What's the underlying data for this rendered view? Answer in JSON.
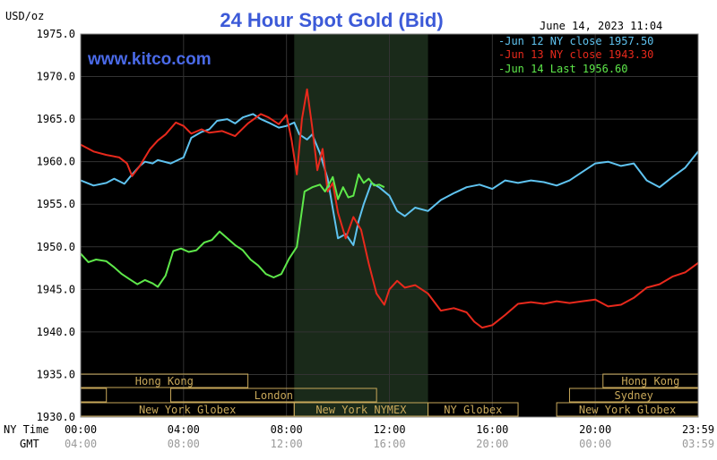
{
  "header": {
    "title": "24 Hour Spot Gold (Bid)",
    "units": "USD/oz",
    "timestamp": "June 14, 2023 11:04",
    "watermark": "www.kitco.com"
  },
  "colors": {
    "background": "#000000",
    "grid": "#333333",
    "jun12": "#5fc3f0",
    "jun13": "#e8291c",
    "jun14": "#5ee84a",
    "session_bar": "#c8a85a",
    "title": "#3c5ad8",
    "shade": "#1a2a1a"
  },
  "axis_labels": {
    "ny_time": "NY Time",
    "gmt": "GMT"
  },
  "sessions": [
    {
      "label": "Hong Kong",
      "start": 0,
      "end": 6.5,
      "row": 0
    },
    {
      "label": "Hong Kong",
      "start": 20.3,
      "end": 24,
      "row": 0
    },
    {
      "label": "",
      "start": 0,
      "end": 1,
      "row": 1
    },
    {
      "label": "London",
      "start": 3.5,
      "end": 11.5,
      "row": 1
    },
    {
      "label": "Sydney",
      "start": 19,
      "end": 24,
      "row": 1
    },
    {
      "label": "New York Globex",
      "start": 0,
      "end": 8.3,
      "row": 2
    },
    {
      "label": "New York NYMEX",
      "start": 8.3,
      "end": 13.5,
      "row": 2
    },
    {
      "label": "NY Globex",
      "start": 13.5,
      "end": 17,
      "row": 2
    },
    {
      "label": "New York Globex",
      "start": 18.5,
      "end": 24,
      "row": 2
    }
  ],
  "chart_data": {
    "type": "line",
    "title": "24 Hour Spot Gold (Bid)",
    "ylabel": "USD/oz",
    "xlabel": "NY Time",
    "xlim": [
      0,
      24
    ],
    "ylim": [
      1930,
      1975
    ],
    "yticks": [
      "1975.0",
      "1970.0",
      "1965.0",
      "1960.0",
      "1955.0",
      "1950.0",
      "1945.0",
      "1940.0",
      "1935.0",
      "1930.0"
    ],
    "xticks": [
      {
        "ny": "00:00",
        "gmt": "04:00"
      },
      {
        "ny": "04:00",
        "gmt": "08:00"
      },
      {
        "ny": "08:00",
        "gmt": "12:00"
      },
      {
        "ny": "12:00",
        "gmt": "16:00"
      },
      {
        "ny": "16:00",
        "gmt": "20:00"
      },
      {
        "ny": "20:00",
        "gmt": "00:00"
      },
      {
        "ny": "23:59",
        "gmt": "03:59"
      }
    ],
    "shaded_region": [
      8.3,
      13.5
    ],
    "grid": true,
    "legend_position": "top-right",
    "series": [
      {
        "name": "Jun 12 NY close 1957.50",
        "x": [
          0,
          0.5,
          1,
          1.3,
          1.7,
          2,
          2.3,
          2.5,
          2.8,
          3,
          3.5,
          4,
          4.3,
          4.7,
          5,
          5.3,
          5.7,
          6,
          6.3,
          6.7,
          7,
          7.3,
          7.7,
          8,
          8.3,
          8.5,
          8.8,
          9,
          9.3,
          9.6,
          9.8,
          10,
          10.3,
          10.6,
          10.8,
          11,
          11.3,
          11.6,
          12,
          12.3,
          12.6,
          13,
          13.5,
          14,
          14.5,
          15,
          15.5,
          16,
          16.5,
          17,
          17.5,
          18,
          18.5,
          19,
          19.5,
          20,
          20.5,
          21,
          21.5,
          22,
          22.5,
          23,
          23.5,
          24
        ],
        "y": [
          1957.8,
          1957.2,
          1957.5,
          1958.0,
          1957.4,
          1958.5,
          1959.5,
          1960.0,
          1959.8,
          1960.2,
          1959.8,
          1960.5,
          1962.8,
          1963.5,
          1963.8,
          1964.8,
          1965.0,
          1964.5,
          1965.2,
          1965.6,
          1965.0,
          1964.6,
          1964.0,
          1964.2,
          1964.6,
          1963.2,
          1962.6,
          1963.2,
          1961.0,
          1958.0,
          1954.5,
          1951.0,
          1951.5,
          1950.2,
          1953.0,
          1955.0,
          1957.5,
          1957.0,
          1956.0,
          1954.2,
          1953.6,
          1954.6,
          1954.2,
          1955.5,
          1956.3,
          1957.0,
          1957.3,
          1956.8,
          1957.8,
          1957.5,
          1957.8,
          1957.6,
          1957.2,
          1957.8,
          1958.8,
          1959.8,
          1960.0,
          1959.5,
          1959.8,
          1957.8,
          1957.0,
          1958.2,
          1959.3,
          1961.2
        ]
      },
      {
        "name": "Jun 13 NY close 1943.30",
        "x": [
          0,
          0.5,
          1,
          1.5,
          1.8,
          2,
          2.3,
          2.7,
          3,
          3.3,
          3.7,
          4,
          4.3,
          4.7,
          5,
          5.5,
          6,
          6.5,
          7,
          7.3,
          7.7,
          8,
          8.2,
          8.4,
          8.6,
          8.8,
          9,
          9.2,
          9.4,
          9.6,
          9.8,
          10,
          10.3,
          10.6,
          10.9,
          11.2,
          11.5,
          11.8,
          12,
          12.3,
          12.6,
          13,
          13.5,
          14,
          14.5,
          15,
          15.3,
          15.6,
          16,
          16.5,
          17,
          17.5,
          18,
          18.5,
          19,
          19.5,
          20,
          20.5,
          21,
          21.5,
          22,
          22.5,
          23,
          23.5,
          24
        ],
        "y": [
          1962.0,
          1961.2,
          1960.8,
          1960.5,
          1959.8,
          1958.3,
          1959.5,
          1961.5,
          1962.5,
          1963.2,
          1964.6,
          1964.2,
          1963.3,
          1963.8,
          1963.4,
          1963.6,
          1963.0,
          1964.5,
          1965.6,
          1965.2,
          1964.4,
          1965.5,
          1962.5,
          1958.5,
          1965.0,
          1968.5,
          1964.0,
          1959.0,
          1961.5,
          1956.5,
          1957.5,
          1954.0,
          1951.0,
          1953.5,
          1952.0,
          1948.0,
          1944.5,
          1943.2,
          1945.0,
          1946.0,
          1945.2,
          1945.5,
          1944.5,
          1942.5,
          1942.8,
          1942.3,
          1941.2,
          1940.5,
          1940.8,
          1942.0,
          1943.3,
          1943.5,
          1943.3,
          1943.6,
          1943.4,
          1943.6,
          1943.8,
          1943.0,
          1943.2,
          1944.0,
          1945.2,
          1945.6,
          1946.5,
          1947.0,
          1948.1
        ]
      },
      {
        "name": "Jun 14 Last 1956.60",
        "x": [
          0,
          0.3,
          0.6,
          1,
          1.3,
          1.6,
          1.9,
          2.2,
          2.5,
          2.8,
          3,
          3.3,
          3.6,
          3.9,
          4.2,
          4.5,
          4.8,
          5.1,
          5.4,
          5.7,
          6,
          6.3,
          6.6,
          6.9,
          7.2,
          7.5,
          7.8,
          8.1,
          8.4,
          8.7,
          9,
          9.3,
          9.5,
          9.8,
          10,
          10.2,
          10.4,
          10.6,
          10.8,
          11.0,
          11.2,
          11.4,
          11.6,
          11.8
        ],
        "y": [
          1949.2,
          1948.2,
          1948.5,
          1948.3,
          1947.6,
          1946.8,
          1946.2,
          1945.6,
          1946.1,
          1945.7,
          1945.3,
          1946.6,
          1949.5,
          1949.8,
          1949.4,
          1949.6,
          1950.5,
          1950.8,
          1951.8,
          1951.0,
          1950.2,
          1949.6,
          1948.5,
          1947.8,
          1946.8,
          1946.4,
          1946.8,
          1948.6,
          1950.0,
          1956.5,
          1957.0,
          1957.3,
          1956.5,
          1958.2,
          1955.6,
          1957.0,
          1955.8,
          1956.0,
          1958.5,
          1957.5,
          1958.0,
          1957.2,
          1957.3,
          1957.0
        ]
      }
    ]
  }
}
